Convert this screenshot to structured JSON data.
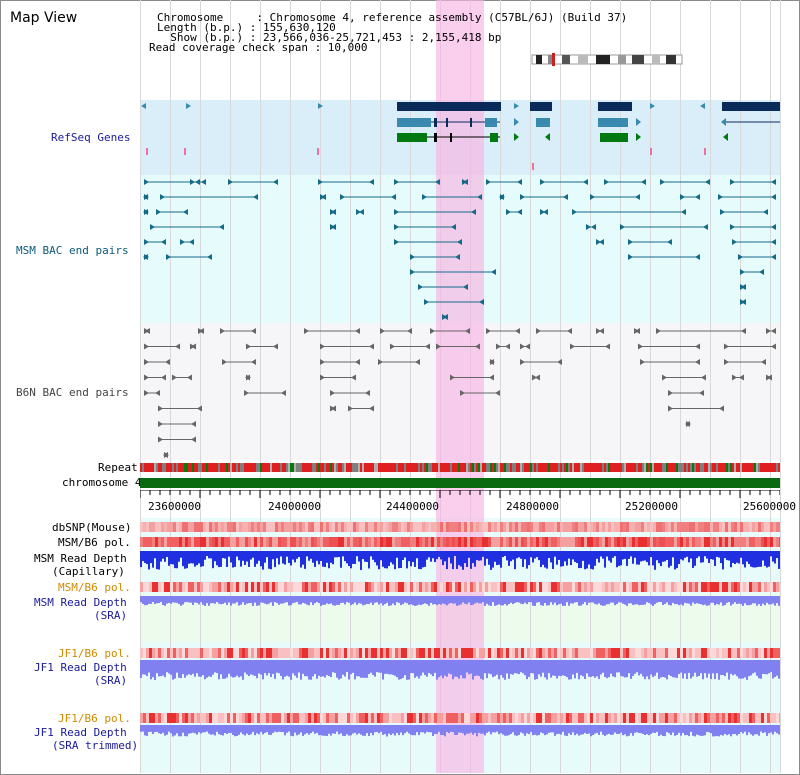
{
  "view": {
    "title": "Map View",
    "info": {
      "chromosome_label": "Chromosome     : Chromosome 4, reference assembly (C57BL/6J) (Build 37)",
      "length_label": "Length (b.p.) : 155,630,120",
      "show_label": "  Show (b.p.) : 23,566,036-25,721,453 : 2,155,418 bp",
      "coverage_label": "Read coverage check span : 10,000"
    }
  },
  "tracks": {
    "refseq": "RefSeq Genes",
    "msm_bac": "MSM BAC end pairs",
    "b6n_bac": "B6N BAC end pairs",
    "repeat": "Repeat",
    "chromosome": "chromosome 4",
    "dbsnp": "dbSNP(Mouse)",
    "msm_b6_pol_1": "MSM/B6 pol.",
    "msm_read_depth_cap_1": "MSM Read Depth",
    "msm_read_depth_cap_2": "(Capillary)",
    "msm_b6_pol_2": "MSM/B6 pol.",
    "msm_read_depth_sra_1": "MSM Read Depth",
    "msm_read_depth_sra_2": "(SRA)",
    "jf1_b6_pol_1": "JF1/B6 pol.",
    "jf1_read_depth_1": "JF1 Read Depth",
    "jf1_read_depth_2": "(SRA)",
    "jf1_b6_pol_2": "JF1/B6 pol.",
    "jf1_read_depth_trim_1": "JF1 Read Depth",
    "jf1_read_depth_trim_2": "(SRA trimmed)"
  },
  "axis": {
    "ticks": [
      "23600000",
      "24000000",
      "24400000",
      "24800000",
      "25200000",
      "25600000"
    ]
  },
  "colors": {
    "refseq_bg": "#d9eef9",
    "msm_bg": "#e6fbfb",
    "b6n_bg": "#f5f5f8",
    "highlight": "#f8b4e4",
    "gene_dark": "#0a2a5a",
    "gene_mid": "#3a8ab0",
    "gene_green": "#007a10",
    "msm_pair": "#156a88",
    "b6n_pair": "#666666",
    "repeat_red": "#e02020",
    "chrom_green": "#0a6a10",
    "depth_blue": "#2030e0",
    "depth_light": "#8080f0"
  }
}
